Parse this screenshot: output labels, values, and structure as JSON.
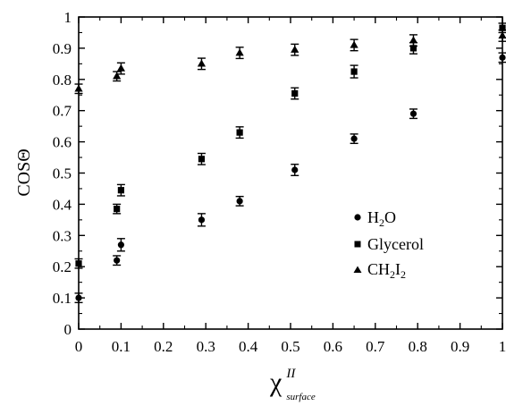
{
  "chart_data": {
    "type": "scatter",
    "title": "",
    "xlabel": "χ",
    "xlabel_superscript": "II",
    "xlabel_subscript": "surface",
    "ylabel": "COSΘ",
    "xlim": [
      0,
      1
    ],
    "ylim": [
      0,
      1
    ],
    "x_ticks": [
      "0",
      "0.1",
      "0.2",
      "0.3",
      "0.4",
      "0.5",
      "0.6",
      "0.7",
      "0.8",
      "0.9",
      "1"
    ],
    "y_ticks": [
      "0",
      "0.1",
      "0.2",
      "0.3",
      "0.4",
      "0.5",
      "0.6",
      "0.7",
      "0.8",
      "0.9",
      "1"
    ],
    "grid": false,
    "legend_position": "right",
    "series": [
      {
        "name_main": "H",
        "name_sub": "2",
        "name_tail": "O",
        "marker": "circle",
        "points": [
          {
            "x": 0.0,
            "y": 0.1,
            "err": 0.015
          },
          {
            "x": 0.09,
            "y": 0.22,
            "err": 0.015
          },
          {
            "x": 0.1,
            "y": 0.27,
            "err": 0.02
          },
          {
            "x": 0.29,
            "y": 0.35,
            "err": 0.02
          },
          {
            "x": 0.38,
            "y": 0.41,
            "err": 0.015
          },
          {
            "x": 0.51,
            "y": 0.51,
            "err": 0.018
          },
          {
            "x": 0.65,
            "y": 0.61,
            "err": 0.015
          },
          {
            "x": 0.79,
            "y": 0.69,
            "err": 0.015
          },
          {
            "x": 1.0,
            "y": 0.87,
            "err": 0.015
          }
        ]
      },
      {
        "name_main": "Glycerol",
        "marker": "square",
        "points": [
          {
            "x": 0.0,
            "y": 0.21,
            "err": 0.015
          },
          {
            "x": 0.09,
            "y": 0.385,
            "err": 0.015
          },
          {
            "x": 0.1,
            "y": 0.445,
            "err": 0.018
          },
          {
            "x": 0.29,
            "y": 0.545,
            "err": 0.018
          },
          {
            "x": 0.38,
            "y": 0.63,
            "err": 0.018
          },
          {
            "x": 0.51,
            "y": 0.755,
            "err": 0.018
          },
          {
            "x": 0.65,
            "y": 0.825,
            "err": 0.02
          },
          {
            "x": 0.79,
            "y": 0.9,
            "err": 0.018
          },
          {
            "x": 1.0,
            "y": 0.965,
            "err": 0.015
          }
        ]
      },
      {
        "name_main": "CH",
        "name_sub": "2",
        "name_tail": "I",
        "name_sub2": "2",
        "marker": "triangle",
        "points": [
          {
            "x": 0.0,
            "y": 0.77,
            "err": 0.015
          },
          {
            "x": 0.09,
            "y": 0.81,
            "err": 0.015
          },
          {
            "x": 0.1,
            "y": 0.835,
            "err": 0.018
          },
          {
            "x": 0.29,
            "y": 0.85,
            "err": 0.018
          },
          {
            "x": 0.38,
            "y": 0.885,
            "err": 0.018
          },
          {
            "x": 0.51,
            "y": 0.895,
            "err": 0.018
          },
          {
            "x": 0.65,
            "y": 0.91,
            "err": 0.018
          },
          {
            "x": 0.79,
            "y": 0.925,
            "err": 0.018
          },
          {
            "x": 1.0,
            "y": 0.94,
            "err": 0.018
          }
        ]
      }
    ]
  }
}
